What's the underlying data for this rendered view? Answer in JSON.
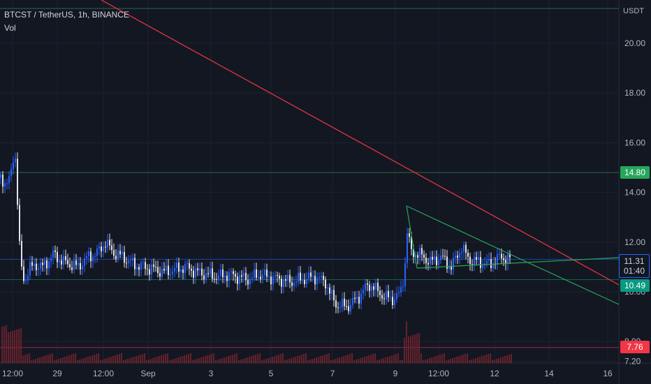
{
  "header": {
    "symbol_line": "BTCST / TetherUS, 1h, BINANCE",
    "indicator": "Vol"
  },
  "axis": {
    "unit": "USDT"
  },
  "colors": {
    "background": "#131722",
    "up": "#2962ff",
    "down": "#e0e3eb",
    "grid": "#1e222d",
    "resistance_line": "#f23645",
    "triangle": "#26a65b",
    "h_line": "#2a7a7a",
    "volume": "#7a2430"
  },
  "tags": {
    "current_price": "11.31",
    "countdown": "01:40",
    "green_level": "14.80",
    "green_level2": "10.49",
    "red_level": "7.76"
  },
  "chart_data": {
    "type": "candlestick",
    "title": "",
    "yticks": [
      "20.00",
      "18.00",
      "16.00",
      "14.00",
      "12.00",
      "10.00",
      "8.00",
      "7.20"
    ],
    "xticks": [
      "12:00",
      "29",
      "12:00",
      "Sep",
      "3",
      "5",
      "7",
      "9",
      "12:00",
      "12",
      "14",
      "16"
    ],
    "ylim": [
      7.2,
      21.5
    ],
    "horizontal_levels": [
      14.8,
      11.31,
      10.49,
      7.76,
      21.4
    ],
    "price_path": [
      [
        0,
        14.6
      ],
      [
        10,
        14.3
      ],
      [
        16,
        14.9
      ],
      [
        20,
        16.0
      ],
      [
        24,
        13.6
      ],
      [
        28,
        11.2
      ],
      [
        34,
        10.4
      ],
      [
        40,
        10.9
      ],
      [
        50,
        11.1
      ],
      [
        60,
        11.0
      ],
      [
        75,
        11.5
      ],
      [
        90,
        11.2
      ],
      [
        110,
        11.0
      ],
      [
        125,
        11.4
      ],
      [
        140,
        11.6
      ],
      [
        150,
        12.0
      ],
      [
        160,
        11.6
      ],
      [
        175,
        11.4
      ],
      [
        190,
        11.1
      ],
      [
        205,
        11.0
      ],
      [
        220,
        10.9
      ],
      [
        235,
        10.8
      ],
      [
        250,
        10.9
      ],
      [
        265,
        11.0
      ],
      [
        280,
        10.8
      ],
      [
        295,
        10.7
      ],
      [
        310,
        10.6
      ],
      [
        325,
        10.7
      ],
      [
        340,
        10.6
      ],
      [
        355,
        10.5
      ],
      [
        370,
        10.7
      ],
      [
        385,
        10.6
      ],
      [
        400,
        10.5
      ],
      [
        415,
        10.4
      ],
      [
        430,
        10.5
      ],
      [
        450,
        10.6
      ],
      [
        465,
        10.4
      ],
      [
        472,
        9.9
      ],
      [
        480,
        9.5
      ],
      [
        495,
        9.4
      ],
      [
        510,
        9.7
      ],
      [
        520,
        10.1
      ],
      [
        530,
        10.3
      ],
      [
        540,
        10.0
      ],
      [
        550,
        9.8
      ],
      [
        560,
        9.7
      ],
      [
        572,
        9.9
      ],
      [
        578,
        10.8
      ],
      [
        582,
        12.4
      ],
      [
        588,
        11.6
      ],
      [
        600,
        11.5
      ],
      [
        615,
        11.2
      ],
      [
        630,
        11.4
      ],
      [
        645,
        11.0
      ],
      [
        660,
        11.8
      ],
      [
        670,
        11.3
      ],
      [
        685,
        11.2
      ],
      [
        700,
        11.1
      ],
      [
        715,
        11.4
      ],
      [
        730,
        11.31
      ]
    ],
    "annotations": "trendlines"
  }
}
